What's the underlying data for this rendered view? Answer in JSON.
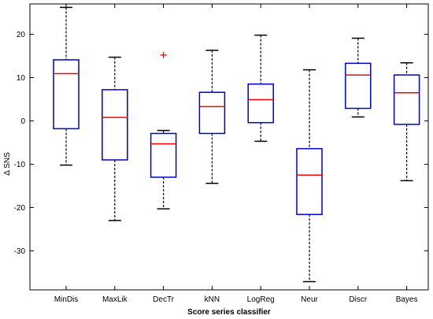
{
  "chart_data": {
    "type": "boxplot",
    "xlabel": "Score series classifier",
    "ylabel": "Δ SNS",
    "ylim": [
      -39,
      27
    ],
    "yticks": [
      20,
      10,
      0,
      -10,
      -20,
      -30
    ],
    "grid": false,
    "colors": {
      "box": "#0000cc",
      "median": "#ff0000",
      "whisker": "#000000",
      "outlier": "#ff0000"
    },
    "categories": [
      "MinDis",
      "MaxLik",
      "DecTr",
      "kNN",
      "LogReg",
      "Neur",
      "Discr",
      "Bayes"
    ],
    "boxes": [
      {
        "min": -10.2,
        "q1": -1.8,
        "median": 10.9,
        "q3": 14.1,
        "max": 26.2,
        "outliers": []
      },
      {
        "min": -23.0,
        "q1": -9.0,
        "median": 0.8,
        "q3": 7.2,
        "max": 14.7,
        "outliers": []
      },
      {
        "min": -20.3,
        "q1": -13.0,
        "median": -5.3,
        "q3": -2.9,
        "max": -2.2,
        "outliers": [
          15.2
        ]
      },
      {
        "min": -14.4,
        "q1": -2.9,
        "median": 3.3,
        "q3": 6.6,
        "max": 16.3,
        "outliers": []
      },
      {
        "min": -4.7,
        "q1": -0.4,
        "median": 4.9,
        "q3": 8.5,
        "max": 19.8,
        "outliers": []
      },
      {
        "min": -37.1,
        "q1": -21.6,
        "median": -12.5,
        "q3": -6.4,
        "max": 11.8,
        "outliers": []
      },
      {
        "min": 0.9,
        "q1": 2.9,
        "median": 10.6,
        "q3": 13.3,
        "max": 19.1,
        "outliers": []
      },
      {
        "min": -13.8,
        "q1": -0.8,
        "median": 6.5,
        "q3": 10.6,
        "max": 13.4,
        "outliers": []
      }
    ]
  }
}
